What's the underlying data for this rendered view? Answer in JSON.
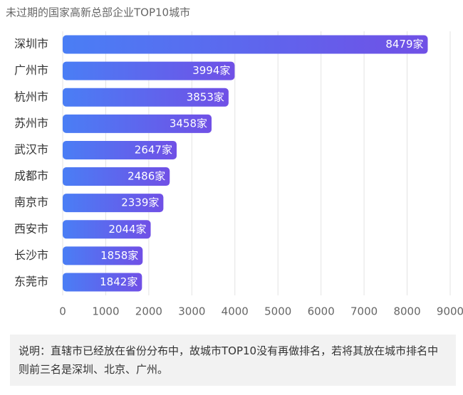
{
  "chart_data": {
    "type": "bar",
    "orientation": "horizontal",
    "title": "未过期的国家高新总部企业TOP10城市",
    "categories": [
      "深圳市",
      "广州市",
      "杭州市",
      "苏州市",
      "武汉市",
      "成都市",
      "南京市",
      "西安市",
      "长沙市",
      "东莞市"
    ],
    "values": [
      8479,
      3994,
      3853,
      3458,
      2647,
      2486,
      2339,
      2044,
      1858,
      1842
    ],
    "value_labels": [
      "8479家",
      "3994家",
      "3853家",
      "3458家",
      "2647家",
      "2486家",
      "2339家",
      "2044家",
      "1858家",
      "1842家"
    ],
    "colors": [
      "#4a7ef5",
      "#7050e6"
    ],
    "xlim": [
      0,
      9000
    ],
    "xticks": [
      0,
      1000,
      2000,
      3000,
      4000,
      5000,
      6000,
      7000,
      8000,
      9000
    ],
    "grid": true
  },
  "note": "说明：直辖市已经放在省份分布中，故城市TOP10没有再做排名，若将其放在城市排名中则前三名是深圳、北京、广州。"
}
